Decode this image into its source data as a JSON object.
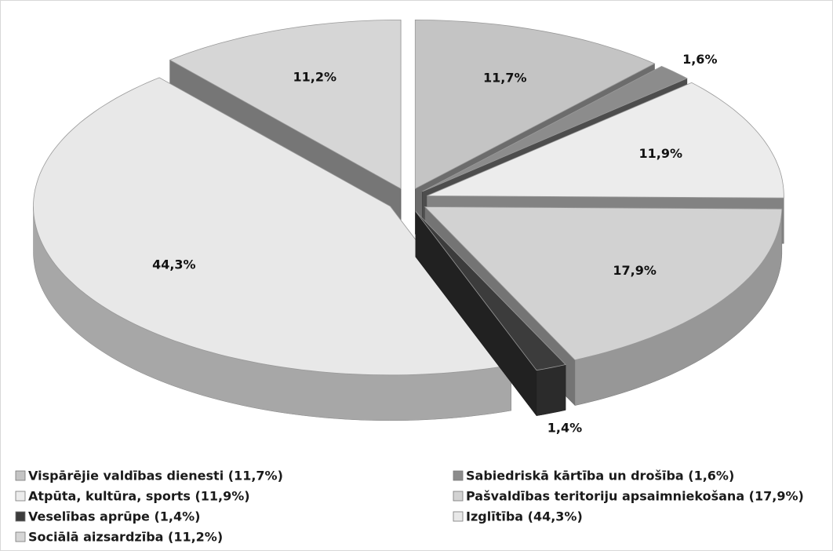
{
  "chart_data": {
    "type": "pie",
    "style": "3d-exploded",
    "categories": [
      "Vispārējie valdības dienesti (11,7%)",
      "Sabiedriskā kārtība un drošība (1,6%)",
      "Atpūta, kultūra, sports (11,9%)",
      "Pašvaldības teritoriju apsaimniekošana (17,9%)",
      "Veselības aprūpe (1,4%)",
      "Izglītība (44,3%)",
      "Sociālā aizsardzība (11,2%)"
    ],
    "values": [
      11.7,
      1.6,
      11.9,
      17.9,
      1.4,
      44.3,
      11.2
    ],
    "value_labels": [
      "11,7%",
      "1,6%",
      "11,9%",
      "17,9%",
      "1,4%",
      "44,3%",
      "11,2%"
    ],
    "colors": [
      "#c4c4c4",
      "#8c8c8c",
      "#ececec",
      "#d2d2d2",
      "#3c3c3c",
      "#e8e8e8",
      "#d6d6d6"
    ],
    "legend": "bottom"
  }
}
